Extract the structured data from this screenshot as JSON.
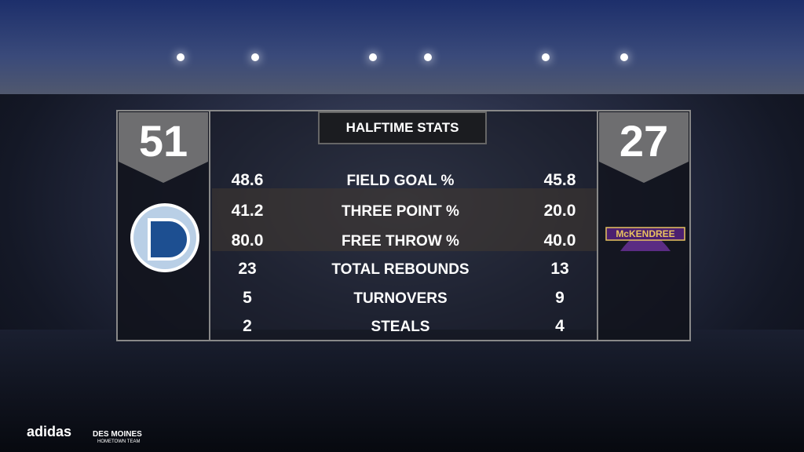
{
  "header": {
    "title": "HALFTIME STATS"
  },
  "teams": {
    "home": {
      "score": "51"
    },
    "away": {
      "score": "27",
      "logo_text": "McKENDREE"
    }
  },
  "stats": {
    "rows": [
      {
        "home": "48.6",
        "label": "FIELD GOAL %",
        "away": "45.8"
      },
      {
        "home": "41.2",
        "label": "THREE POINT %",
        "away": "20.0"
      },
      {
        "home": "80.0",
        "label": "FREE THROW %",
        "away": "40.0"
      },
      {
        "home": "23",
        "label": "TOTAL REBOUNDS",
        "away": "13"
      },
      {
        "home": "5",
        "label": "TURNOVERS",
        "away": "9"
      },
      {
        "home": "2",
        "label": "STEALS",
        "away": "4"
      }
    ]
  },
  "footer": {
    "sponsor": "adidas",
    "partner": "DES MOINES",
    "partner_tagline": "HOMETOWN TEAM"
  }
}
